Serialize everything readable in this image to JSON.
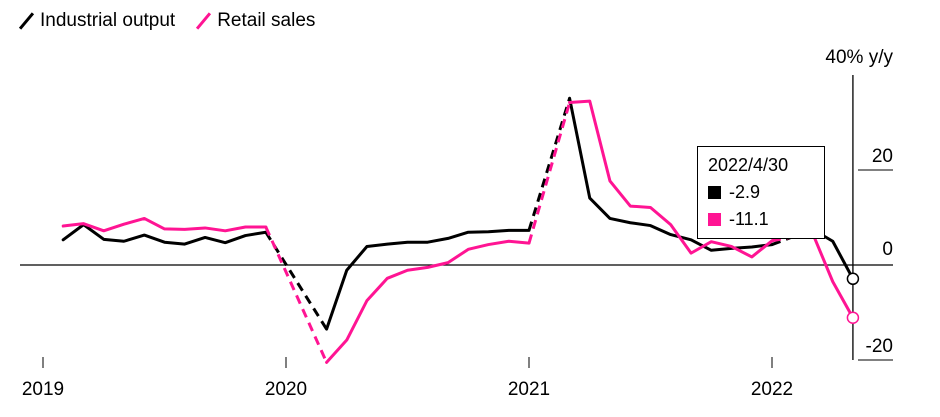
{
  "legend": {
    "industrial_label": "Industrial output",
    "retail_label": "Retail sales"
  },
  "colors": {
    "industrial": "#000000",
    "retail": "#ff1493"
  },
  "tooltip": {
    "date": "2022/4/30",
    "industrial_value": "-2.9",
    "retail_value": "-11.1"
  },
  "chart_data": {
    "type": "line",
    "y_unit_label": "40% y/y",
    "yticks": [
      {
        "value": 20,
        "label": "20"
      },
      {
        "value": 0,
        "label": "0"
      },
      {
        "value": -20,
        "label": "-20"
      }
    ],
    "xticks": [
      {
        "x": 2019,
        "label": "2019"
      },
      {
        "x": 2020,
        "label": "2020"
      },
      {
        "x": 2021,
        "label": "2021"
      },
      {
        "x": 2022,
        "label": "2022"
      }
    ],
    "xlim": [
      2018.92,
      2022.55
    ],
    "ylim": [
      -22,
      42
    ],
    "series": [
      {
        "name": "Industrial output",
        "color": "#000000",
        "points": [
          [
            2019.083,
            5.3
          ],
          [
            2019.167,
            8.5
          ],
          [
            2019.25,
            5.4
          ],
          [
            2019.333,
            5.0
          ],
          [
            2019.417,
            6.3
          ],
          [
            2019.5,
            4.8
          ],
          [
            2019.583,
            4.4
          ],
          [
            2019.667,
            5.8
          ],
          [
            2019.75,
            4.7
          ],
          [
            2019.833,
            6.2
          ],
          [
            2019.917,
            6.9
          ],
          [
            2020.167,
            -13.5
          ],
          [
            2020.25,
            -1.1
          ],
          [
            2020.333,
            3.9
          ],
          [
            2020.417,
            4.4
          ],
          [
            2020.5,
            4.8
          ],
          [
            2020.583,
            4.8
          ],
          [
            2020.667,
            5.6
          ],
          [
            2020.75,
            6.9
          ],
          [
            2020.833,
            7.0
          ],
          [
            2020.917,
            7.3
          ],
          [
            2021.0,
            7.3
          ],
          [
            2021.167,
            35.1
          ],
          [
            2021.25,
            14.1
          ],
          [
            2021.333,
            9.8
          ],
          [
            2021.417,
            8.9
          ],
          [
            2021.5,
            8.3
          ],
          [
            2021.583,
            6.4
          ],
          [
            2021.667,
            5.3
          ],
          [
            2021.75,
            3.1
          ],
          [
            2021.833,
            3.5
          ],
          [
            2021.917,
            3.8
          ],
          [
            2022.0,
            4.3
          ],
          [
            2022.167,
            7.5
          ],
          [
            2022.25,
            5.0
          ],
          [
            2022.333,
            -2.9
          ]
        ],
        "dashed_segments": [
          [
            2019.917,
            2020.167
          ],
          [
            2021.0,
            2021.167
          ],
          [
            2022.0,
            2022.167
          ]
        ]
      },
      {
        "name": "Retail sales",
        "color": "#ff1493",
        "points": [
          [
            2019.083,
            8.2
          ],
          [
            2019.167,
            8.7
          ],
          [
            2019.25,
            7.2
          ],
          [
            2019.333,
            8.6
          ],
          [
            2019.417,
            9.8
          ],
          [
            2019.5,
            7.6
          ],
          [
            2019.583,
            7.5
          ],
          [
            2019.667,
            7.8
          ],
          [
            2019.75,
            7.2
          ],
          [
            2019.833,
            8.0
          ],
          [
            2019.917,
            8.0
          ],
          [
            2020.167,
            -20.5
          ],
          [
            2020.25,
            -15.8
          ],
          [
            2020.333,
            -7.5
          ],
          [
            2020.417,
            -2.8
          ],
          [
            2020.5,
            -1.1
          ],
          [
            2020.583,
            -0.5
          ],
          [
            2020.667,
            0.5
          ],
          [
            2020.75,
            3.3
          ],
          [
            2020.833,
            4.3
          ],
          [
            2020.917,
            5.0
          ],
          [
            2021.0,
            4.6
          ],
          [
            2021.167,
            34.2
          ],
          [
            2021.25,
            34.5
          ],
          [
            2021.333,
            17.7
          ],
          [
            2021.417,
            12.4
          ],
          [
            2021.5,
            12.1
          ],
          [
            2021.583,
            8.5
          ],
          [
            2021.667,
            2.5
          ],
          [
            2021.75,
            4.9
          ],
          [
            2021.833,
            3.9
          ],
          [
            2021.917,
            1.7
          ],
          [
            2022.0,
            5.1
          ],
          [
            2022.167,
            6.7
          ],
          [
            2022.25,
            -3.5
          ],
          [
            2022.333,
            -11.1
          ]
        ],
        "dashed_segments": [
          [
            2019.917,
            2020.167
          ],
          [
            2021.0,
            2021.167
          ],
          [
            2022.0,
            2022.167
          ]
        ]
      }
    ],
    "grid": false,
    "legend_position": "top-left"
  }
}
